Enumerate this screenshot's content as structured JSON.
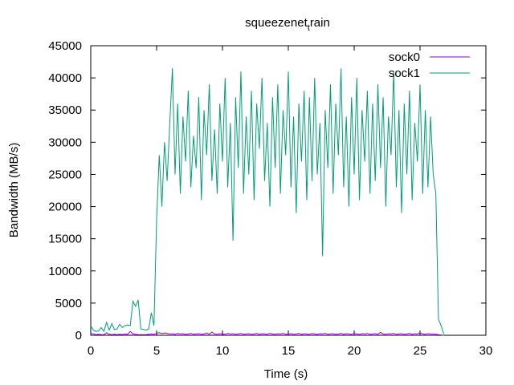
{
  "chart_data": {
    "type": "line",
    "title_parts": [
      "squeezenet",
      "t",
      "rain"
    ],
    "xlabel": "Time (s)",
    "ylabel": "Bandwidth (MB/s)",
    "xlim": [
      0,
      30
    ],
    "xticks": [
      0,
      5,
      10,
      15,
      20,
      25,
      30
    ],
    "ylim": [
      0,
      45000
    ],
    "yticks": [
      0,
      5000,
      10000,
      15000,
      20000,
      25000,
      30000,
      35000,
      40000,
      45000
    ],
    "legend": "top-right",
    "x": [
      0,
      0.2,
      0.4,
      0.6,
      0.8,
      1,
      1.2,
      1.4,
      1.6,
      1.8,
      2,
      2.2,
      2.4,
      2.6,
      2.8,
      3,
      3.2,
      3.4,
      3.6,
      3.8,
      4,
      4.2,
      4.4,
      4.6,
      4.8,
      5,
      5.2,
      5.4,
      5.6,
      5.8,
      6,
      6.2,
      6.4,
      6.6,
      6.8,
      7,
      7.2,
      7.4,
      7.6,
      7.8,
      8,
      8.2,
      8.4,
      8.6,
      8.8,
      9,
      9.2,
      9.4,
      9.6,
      9.8,
      10,
      10.2,
      10.4,
      10.6,
      10.8,
      11,
      11.2,
      11.4,
      11.6,
      11.8,
      12,
      12.2,
      12.4,
      12.6,
      12.8,
      13,
      13.2,
      13.4,
      13.6,
      13.8,
      14,
      14.2,
      14.4,
      14.6,
      14.8,
      15,
      15.2,
      15.4,
      15.6,
      15.8,
      16,
      16.2,
      16.4,
      16.6,
      16.8,
      17,
      17.2,
      17.4,
      17.6,
      17.8,
      18,
      18.2,
      18.4,
      18.6,
      18.8,
      19,
      19.2,
      19.4,
      19.6,
      19.8,
      20,
      20.2,
      20.4,
      20.6,
      20.8,
      21,
      21.2,
      21.4,
      21.6,
      21.8,
      22,
      22.2,
      22.4,
      22.6,
      22.8,
      23,
      23.2,
      23.4,
      23.6,
      23.8,
      24,
      24.2,
      24.4,
      24.6,
      24.8,
      25,
      25.2,
      25.4,
      25.6,
      25.8,
      26,
      26.2,
      26.4,
      26.6,
      26.8
    ],
    "series": [
      {
        "name": "sock0",
        "color": "#9400d3",
        "values": [
          300,
          200,
          100,
          150,
          100,
          100,
          400,
          150,
          100,
          150,
          100,
          150,
          100,
          200,
          150,
          600,
          200,
          150,
          100,
          100,
          100,
          100,
          150,
          200,
          150,
          300,
          400,
          250,
          350,
          300,
          200,
          250,
          150,
          300,
          200,
          250,
          150,
          200,
          300,
          150,
          200,
          250,
          150,
          200,
          350,
          150,
          500,
          200,
          150,
          250,
          200,
          150,
          300,
          200,
          250,
          150,
          200,
          300,
          150,
          200,
          250,
          150,
          200,
          300,
          150,
          250,
          200,
          150,
          300,
          200,
          150,
          250,
          200,
          300,
          150,
          200,
          250,
          150,
          200,
          300,
          150,
          250,
          200,
          150,
          300,
          200,
          150,
          250,
          200,
          300,
          150,
          200,
          250,
          150,
          200,
          300,
          150,
          250,
          200,
          150,
          300,
          200,
          150,
          250,
          200,
          300,
          150,
          200,
          250,
          150,
          450,
          200,
          150,
          250,
          200,
          300,
          150,
          200,
          250,
          150,
          200,
          300,
          150,
          250,
          200,
          400,
          200,
          150,
          250,
          200,
          200,
          150,
          100,
          50,
          0
        ]
      },
      {
        "name": "sock1",
        "color": "#009e73",
        "values": [
          1500,
          800,
          600,
          700,
          1200,
          600,
          2000,
          800,
          1800,
          900,
          1000,
          1700,
          1200,
          1500,
          1600,
          1500,
          5300,
          4500,
          5500,
          1000,
          900,
          800,
          1000,
          3500,
          1500,
          18000,
          28000,
          20000,
          30000,
          24000,
          33000,
          41500,
          25000,
          36000,
          22000,
          34000,
          27000,
          38000,
          23000,
          31000,
          26000,
          37000,
          21000,
          35000,
          28000,
          39000,
          24000,
          32000,
          22000,
          36000,
          27000,
          40000,
          23000,
          33000,
          14700,
          37000,
          26000,
          41000,
          22000,
          34000,
          25000,
          38000,
          21000,
          36000,
          29000,
          40000,
          24000,
          33000,
          20000,
          37000,
          26000,
          39000,
          22000,
          35000,
          28000,
          41000,
          23000,
          34000,
          19000,
          36000,
          27000,
          38000,
          21000,
          37000,
          24000,
          40000,
          25000,
          33000,
          12300,
          35000,
          26000,
          39000,
          22000,
          36000,
          28000,
          41500,
          23000,
          34000,
          20000,
          37000,
          25000,
          40000,
          21000,
          35000,
          27000,
          38000,
          22000,
          36000,
          24000,
          39000,
          26000,
          37000,
          20000,
          34000,
          28000,
          41000,
          23000,
          35000,
          19000,
          36000,
          25000,
          38000,
          21000,
          33000,
          27000,
          39000,
          22000,
          35000,
          23000,
          34000,
          25000,
          22000,
          2500,
          1500,
          200
        ]
      }
    ]
  }
}
